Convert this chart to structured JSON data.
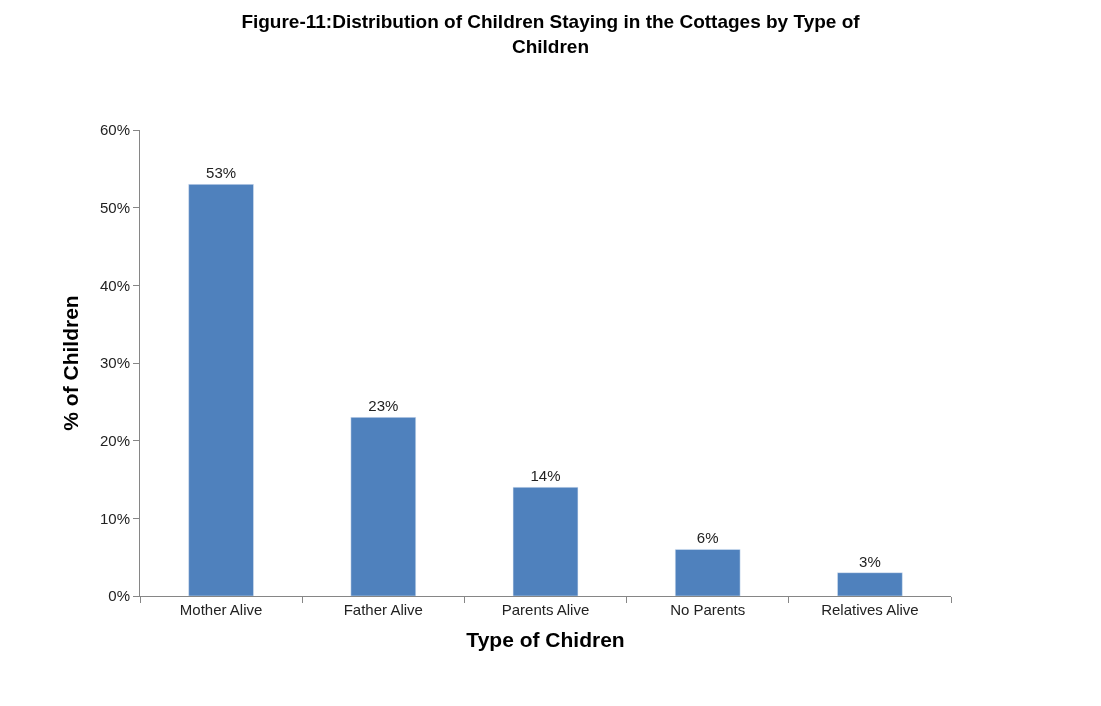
{
  "chart_data": {
    "type": "bar",
    "title": "Figure-11:Distribution of Children Staying in the Cottages by Type of\nChildren",
    "xlabel": "Type of Chidren",
    "ylabel": "% of Children",
    "categories": [
      "Mother Alive",
      "Father Alive",
      "Parents Alive",
      "No Parents",
      "Relatives Alive"
    ],
    "values": [
      53,
      23,
      14,
      6,
      3
    ],
    "color": "#4f81bd",
    "value_labels": [
      "53%",
      "23%",
      "14%",
      "6%",
      "3%"
    ],
    "ylim": [
      0,
      60
    ],
    "yticks": [
      {
        "value": 0,
        "label": "0%"
      },
      {
        "value": 10,
        "label": "10%"
      },
      {
        "value": 20,
        "label": "20%"
      },
      {
        "value": 30,
        "label": "30%"
      },
      {
        "value": 40,
        "label": "40%"
      },
      {
        "value": 50,
        "label": "50%"
      },
      {
        "value": 60,
        "label": "60%"
      }
    ]
  }
}
